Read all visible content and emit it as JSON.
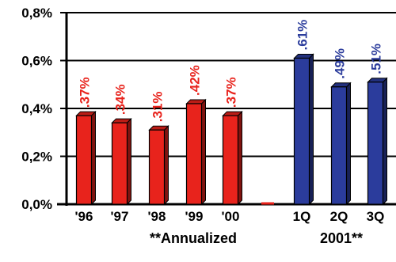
{
  "chart_data": {
    "type": "bar",
    "ylim": [
      0,
      0.8
    ],
    "y_ticks": [
      {
        "value": 0.0,
        "label": "0,0%"
      },
      {
        "value": 0.2,
        "label": "0,2%"
      },
      {
        "value": 0.4,
        "label": "0,4%"
      },
      {
        "value": 0.6,
        "label": "0,6%"
      },
      {
        "value": 0.8,
        "label": "0,8%"
      }
    ],
    "grid": true,
    "categories": [
      "'96",
      "'97",
      "'98",
      "'99",
      "'00",
      "",
      "1Q",
      "2Q",
      "3Q"
    ],
    "series": [
      {
        "color": "#e8231c",
        "values": [
          0.37,
          0.34,
          0.31,
          0.42,
          0.37,
          null,
          null,
          null,
          null
        ],
        "data_labels": [
          ".37%",
          ".34%",
          ".31%",
          ".42%",
          ".37%",
          "",
          "",
          "",
          ""
        ]
      },
      {
        "color": "#2b3c9c",
        "values": [
          null,
          null,
          null,
          null,
          null,
          null,
          0.61,
          0.49,
          0.51
        ],
        "data_labels": [
          "",
          "",
          "",
          "",
          "",
          "",
          ".61%",
          ".49%",
          ".51%"
        ]
      }
    ],
    "group_labels": [
      "**Annualized",
      "2001**"
    ]
  }
}
